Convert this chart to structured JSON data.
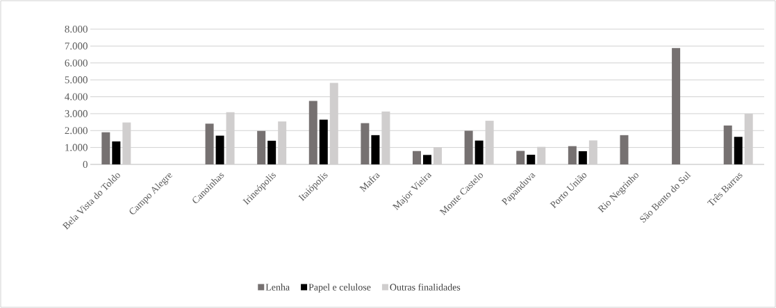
{
  "chart_data": {
    "type": "bar",
    "categories": [
      "Bela Vista do Toldo",
      "Campo Alegre",
      "Canoinhas",
      "Irineópolis",
      "Itaiópolis",
      "Mafra",
      "Major Vieira",
      "Monte Castelo",
      "Papanduva",
      "Porto União",
      "Rio Negrinho",
      "São Bento do Sul",
      "Três Barras"
    ],
    "series": [
      {
        "name": "Lenha",
        "color": "#767171",
        "values": [
          1900,
          null,
          2410,
          1980,
          3750,
          2440,
          790,
          1990,
          800,
          1080,
          1730,
          6880,
          2300
        ]
      },
      {
        "name": "Papel e celulose",
        "color": "#000000",
        "values": [
          1360,
          null,
          1700,
          1400,
          2650,
          1730,
          560,
          1410,
          570,
          780,
          null,
          null,
          1630
        ]
      },
      {
        "name": "Outras finalidades",
        "color": "#d0cece",
        "values": [
          2480,
          null,
          3090,
          2540,
          4820,
          3130,
          1020,
          2580,
          1040,
          1420,
          null,
          null,
          2990
        ]
      }
    ],
    "ylim": [
      0,
      8000
    ],
    "yticks": [
      {
        "value": 0,
        "label": "0"
      },
      {
        "value": 1000,
        "label": "1.000"
      },
      {
        "value": 2000,
        "label": "2.000"
      },
      {
        "value": 3000,
        "label": "3.000"
      },
      {
        "value": 4000,
        "label": "4.000"
      },
      {
        "value": 5000,
        "label": "5.000"
      },
      {
        "value": 6000,
        "label": "6.000"
      },
      {
        "value": 7000,
        "label": "7.000"
      },
      {
        "value": 8000,
        "label": "8.000"
      }
    ],
    "grid": "y",
    "legend": "bottom"
  }
}
